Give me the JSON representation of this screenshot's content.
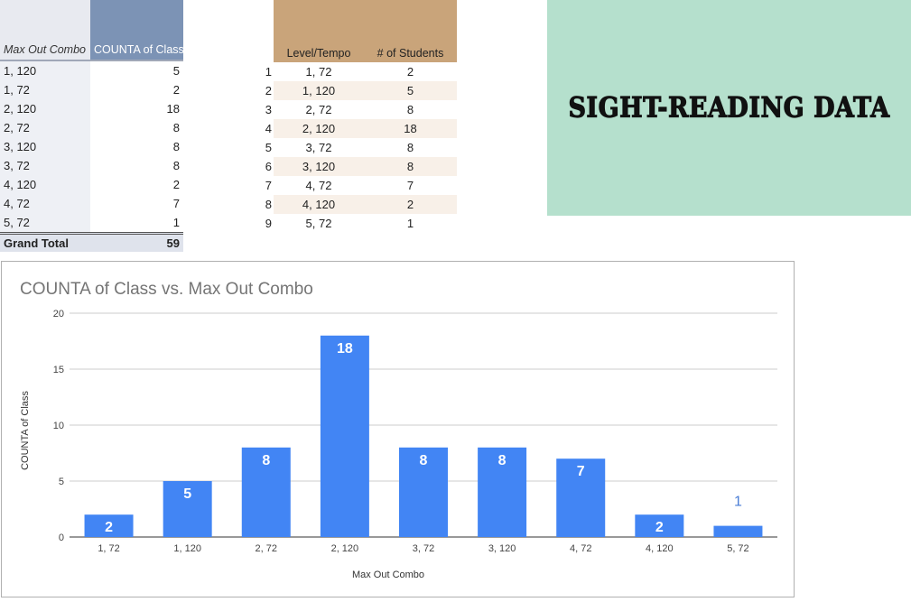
{
  "pivot": {
    "header": {
      "col1": "Max Out Combo",
      "col2": "COUNTA of Class"
    },
    "rows": [
      {
        "combo": "1, 120",
        "count": "5"
      },
      {
        "combo": "1, 72",
        "count": "2"
      },
      {
        "combo": "2, 120",
        "count": "18"
      },
      {
        "combo": "2, 72",
        "count": "8"
      },
      {
        "combo": "3, 120",
        "count": "8"
      },
      {
        "combo": "3, 72",
        "count": "8"
      },
      {
        "combo": "4, 120",
        "count": "2"
      },
      {
        "combo": "4, 72",
        "count": "7"
      },
      {
        "combo": "5, 72",
        "count": "1"
      }
    ],
    "total_label": "Grand Total",
    "total_value": "59"
  },
  "level_table": {
    "header": {
      "col1": "Level/Tempo",
      "col2": "# of Students"
    },
    "rows": [
      {
        "idx": "1",
        "level": "1, 72",
        "students": "2"
      },
      {
        "idx": "2",
        "level": "1, 120",
        "students": "5"
      },
      {
        "idx": "3",
        "level": "2, 72",
        "students": "8"
      },
      {
        "idx": "4",
        "level": "2, 120",
        "students": "18"
      },
      {
        "idx": "5",
        "level": "3, 72",
        "students": "8"
      },
      {
        "idx": "6",
        "level": "3, 120",
        "students": "8"
      },
      {
        "idx": "7",
        "level": "4, 72",
        "students": "7"
      },
      {
        "idx": "8",
        "level": "4, 120",
        "students": "2"
      },
      {
        "idx": "9",
        "level": "5, 72",
        "students": "1"
      }
    ]
  },
  "banner": {
    "text": "SIGHT-READING DATA",
    "background": "#b5e0cd"
  },
  "chart_data": {
    "type": "bar",
    "title": "COUNTA of Class vs. Max Out Combo",
    "xlabel": "Max Out Combo",
    "ylabel": "COUNTA of Class",
    "categories": [
      "1, 72",
      "1, 120",
      "2, 72",
      "2, 120",
      "3, 72",
      "3, 120",
      "4, 72",
      "4, 120",
      "5, 72"
    ],
    "values": [
      2,
      5,
      8,
      18,
      8,
      8,
      7,
      2,
      1
    ],
    "ylim": [
      0,
      20
    ],
    "yticks": [
      0,
      5,
      10,
      15,
      20
    ],
    "grid": true,
    "bar_color": "#4285f4"
  }
}
